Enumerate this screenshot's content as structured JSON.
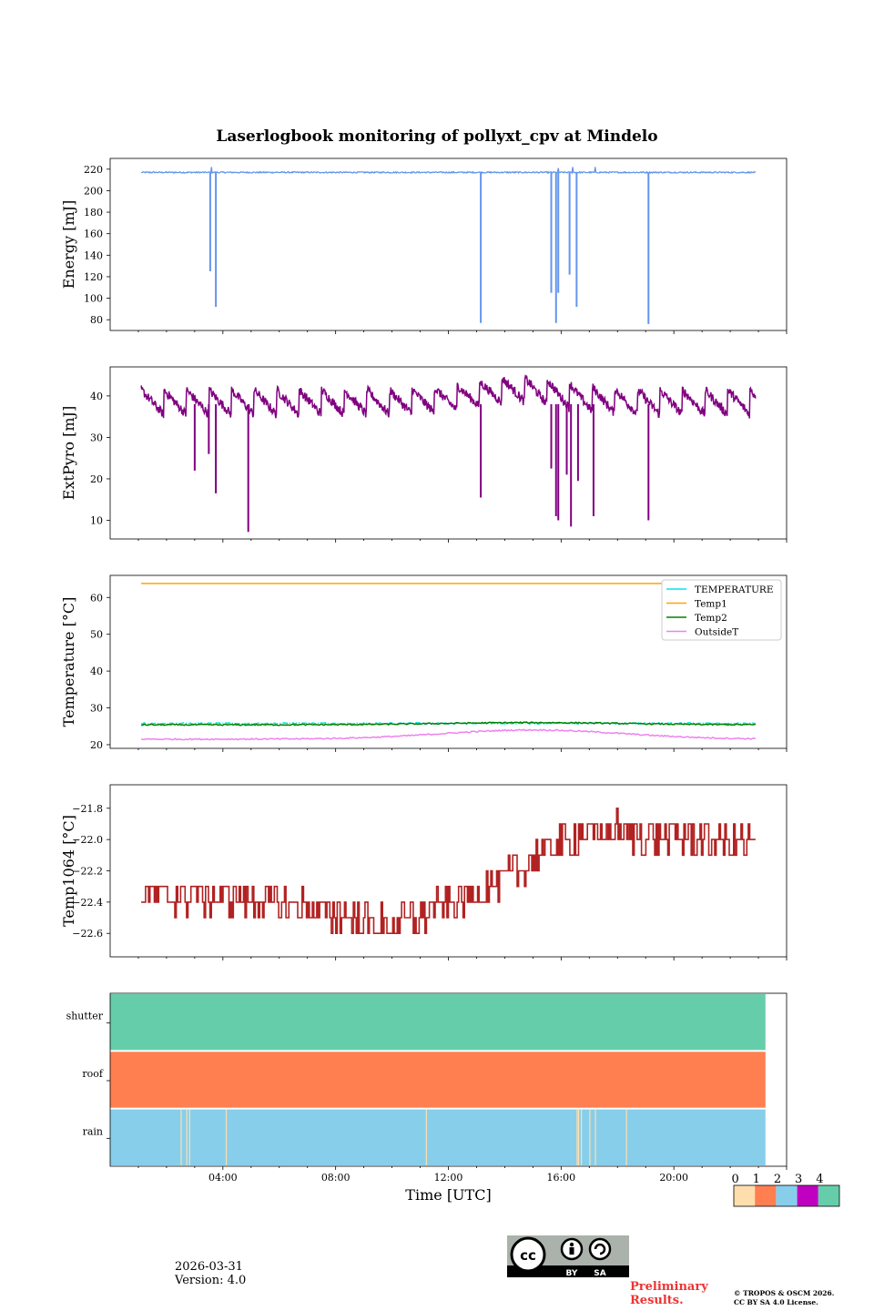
{
  "title": "Laserlogbook monitoring of pollyxt_cpv at Mindelo",
  "footer": {
    "date": "2026-03-31",
    "version": "Version: 4.0",
    "preliminary_line1": "Preliminary",
    "preliminary_line2": "Results.",
    "copyright_line1": "© TROPOS & OSCM 2026.",
    "copyright_line2": "CC BY SA 4.0 License.",
    "cc_badge": {
      "cc": "cc",
      "by": "BY",
      "sa": "SA"
    }
  },
  "chart_data": [
    {
      "type": "line",
      "id": "energy",
      "ylabel": "Energy [mJ]",
      "ylim": [
        70,
        230
      ],
      "yticks": [
        80,
        100,
        120,
        140,
        160,
        180,
        200,
        220
      ],
      "xlim": [
        0,
        24
      ],
      "x_start_h": 1.1,
      "x_end_h": 22.9,
      "baseline": 217,
      "noise": 1.2,
      "color": "#6495ed",
      "dips": [
        [
          3.55,
          125
        ],
        [
          3.75,
          92
        ],
        [
          13.15,
          77
        ],
        [
          15.65,
          105
        ],
        [
          15.82,
          77
        ],
        [
          15.9,
          105
        ],
        [
          16.3,
          122
        ],
        [
          16.55,
          92
        ],
        [
          19.1,
          76
        ]
      ],
      "spikes": [
        [
          3.6,
          222
        ],
        [
          15.9,
          221
        ],
        [
          16.4,
          222
        ],
        [
          17.2,
          222
        ]
      ]
    },
    {
      "type": "line",
      "id": "extpyro",
      "ylabel": "ExtPyro [mJ]",
      "ylim": [
        5.5,
        47
      ],
      "yticks": [
        10,
        20,
        30,
        40
      ],
      "xlim": [
        0,
        24
      ],
      "x_start_h": 1.1,
      "x_end_h": 22.9,
      "baseline": 38,
      "sawtooth_hi": 41.5,
      "sawtooth_lo": 35.5,
      "period_h": 0.8,
      "color": "#800080",
      "dips": [
        [
          3.0,
          22
        ],
        [
          3.5,
          26
        ],
        [
          3.75,
          16.5
        ],
        [
          4.9,
          7.2
        ],
        [
          13.15,
          15.5
        ],
        [
          15.65,
          22.5
        ],
        [
          15.82,
          11
        ],
        [
          15.9,
          10
        ],
        [
          16.2,
          21
        ],
        [
          16.35,
          8.5
        ],
        [
          16.6,
          19.5
        ],
        [
          17.15,
          11
        ],
        [
          19.1,
          10
        ]
      ],
      "bump": {
        "center_h": 14.5,
        "height": 3
      }
    },
    {
      "type": "line",
      "id": "temperature",
      "ylabel": "Temperature [°C]",
      "ylim": [
        19,
        66
      ],
      "yticks": [
        20,
        30,
        40,
        50,
        60
      ],
      "xlim": [
        0,
        24
      ],
      "x_start_h": 1.1,
      "x_end_h": 22.9,
      "legend_position": "top-right",
      "series": [
        {
          "name": "TEMPERATURE",
          "color": "#00e5e5",
          "base": 25.8,
          "dashed": true
        },
        {
          "name": "Temp1",
          "color": "#ffa500",
          "base": 63.8
        },
        {
          "name": "Temp2",
          "color": "#008000",
          "base": 25.4,
          "rise": 0.6
        },
        {
          "name": "OutsideT",
          "color": "#ee82ee",
          "base": 21.5,
          "rise": 2.5
        }
      ]
    },
    {
      "type": "line",
      "id": "temp1064",
      "ylabel": "Temp1064 [°C]",
      "ylim": [
        -22.75,
        -21.65
      ],
      "yticks": [
        -22.6,
        -22.4,
        -22.2,
        -22.0,
        -21.8
      ],
      "ytick_labels": [
        "−22.6",
        "−22.4",
        "−22.2",
        "−22.0",
        "−21.8"
      ],
      "xlim": [
        0,
        24
      ],
      "x_start_h": 1.1,
      "x_end_h": 22.9,
      "step": 0.1,
      "color": "#b22222",
      "trend": [
        [
          1.1,
          -22.35
        ],
        [
          5.0,
          -22.38
        ],
        [
          8.0,
          -22.48
        ],
        [
          9.5,
          -22.55
        ],
        [
          11.0,
          -22.5
        ],
        [
          13.0,
          -22.33
        ],
        [
          14.5,
          -22.2
        ],
        [
          15.5,
          -22.05
        ],
        [
          17.0,
          -21.96
        ],
        [
          18.0,
          -21.95
        ],
        [
          22.9,
          -22.03
        ]
      ]
    },
    {
      "type": "heatmap",
      "id": "status",
      "xlabel": "Time [UTC]",
      "xlim": [
        0,
        24
      ],
      "x_end_h": 23.25,
      "xticks": [
        4,
        8,
        12,
        16,
        20
      ],
      "xtick_labels": [
        "04:00",
        "08:00",
        "12:00",
        "16:00",
        "20:00"
      ],
      "rows": [
        "shutter",
        "roof",
        "rain"
      ],
      "row_values": [
        4,
        1,
        2
      ],
      "rain_zero_times_h": [
        2.5,
        2.7,
        2.8,
        4.1,
        11.2,
        16.55,
        16.6,
        16.7,
        17.0,
        17.2,
        18.3
      ],
      "colorbar": {
        "ticks": [
          "0",
          "1",
          "2",
          "3",
          "4"
        ],
        "colors": [
          "#ffdead",
          "#ff7f50",
          "#87ceeb",
          "#c000c0",
          "#66cdaa"
        ]
      }
    }
  ]
}
